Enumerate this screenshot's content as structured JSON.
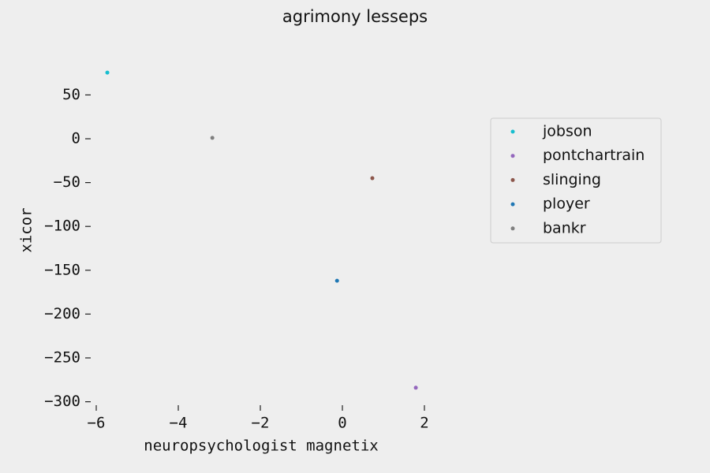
{
  "chart_data": {
    "type": "scatter",
    "title": "agrimony lesseps",
    "xlabel": "neuropsychologist magnetix",
    "ylabel": "xicor",
    "xlim": [
      -6,
      2.2
    ],
    "ylim": [
      -300,
      85
    ],
    "xticks": [
      {
        "value": -6,
        "label": "−6"
      },
      {
        "value": -4,
        "label": "−4"
      },
      {
        "value": -2,
        "label": "−2"
      },
      0,
      2
    ],
    "yticks": [
      {
        "value": -300,
        "label": "−300"
      },
      {
        "value": -250,
        "label": "−250"
      },
      {
        "value": -200,
        "label": "−200"
      },
      {
        "value": -150,
        "label": "−150"
      },
      {
        "value": -100,
        "label": "−100"
      },
      {
        "value": -50,
        "label": "−50"
      },
      0,
      50
    ],
    "grid": false,
    "legend": "right",
    "series": [
      {
        "name": "jobson",
        "color": "#17becf",
        "x": [
          -5.73
        ],
        "values": [
          75.5
        ]
      },
      {
        "name": "pontchartrain",
        "color": "#9467bd",
        "x": [
          1.79
        ],
        "values": [
          -284
        ]
      },
      {
        "name": "slinging",
        "color": "#8c564b",
        "x": [
          0.73
        ],
        "values": [
          -45
        ]
      },
      {
        "name": "ployer",
        "color": "#1f77b4",
        "x": [
          -0.13
        ],
        "values": [
          -162
        ]
      },
      {
        "name": "bankr",
        "color": "#7f7f7f",
        "x": [
          -3.17
        ],
        "values": [
          1
        ]
      }
    ]
  }
}
